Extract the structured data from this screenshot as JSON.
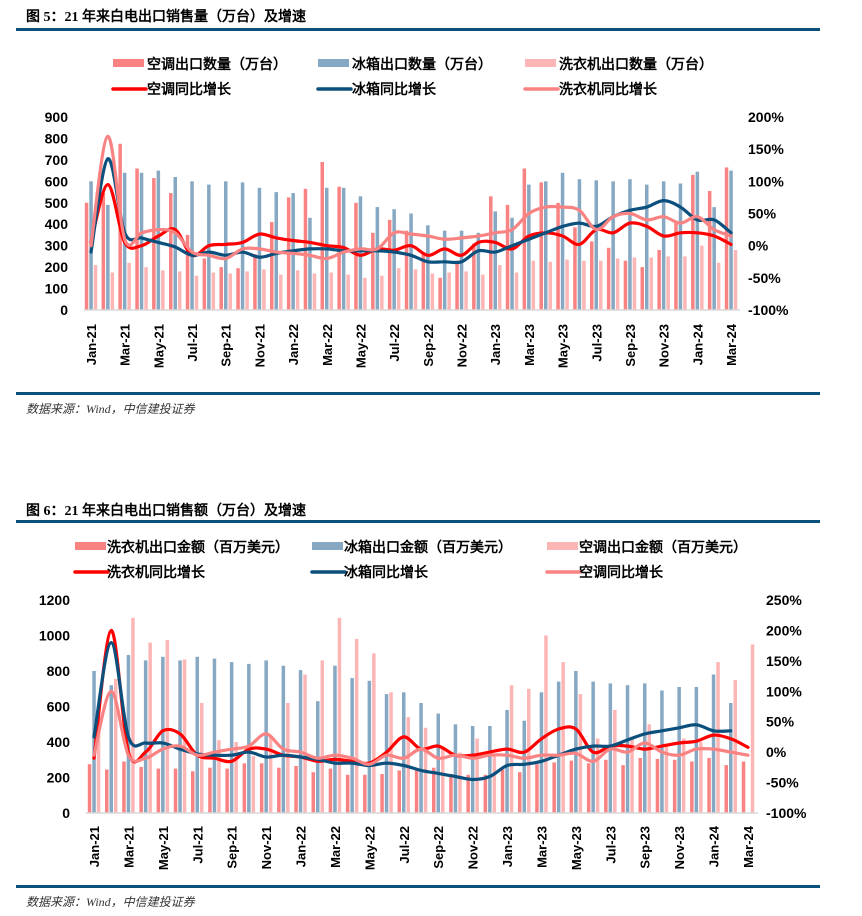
{
  "figures": [
    {
      "title": "图 5：21 年来白电出口销售量（万台）及增速",
      "source": "数据来源：Wind，中信建投证券"
    },
    {
      "title": "图 6：21 年来白电出口销售额（万台）及增速",
      "source": "数据来源：Wind，中信建投证券"
    }
  ],
  "colors": {
    "bar_red": "#f98282",
    "bar_blue": "#86a8c2",
    "bar_pink": "#fdb6b6",
    "line_red": "#ff0000",
    "line_navy": "#0b4f7c",
    "line_salmon": "#f98282",
    "rule": "#0b4f7c"
  },
  "chart_data": [
    {
      "type": "bar",
      "title": "图 5：21 年来白电出口销售量（万台）及增速",
      "xlabel": "",
      "ylabel": "",
      "ylim": [
        0,
        900
      ],
      "y2lim": [
        -1.0,
        2.0
      ],
      "yticks": [
        "0",
        "100",
        "200",
        "300",
        "400",
        "500",
        "600",
        "700",
        "800",
        "900"
      ],
      "y2ticks": [
        "-100%",
        "-50%",
        "0%",
        "50%",
        "100%",
        "150%",
        "200%"
      ],
      "xtick_labels": [
        "Jan-21",
        "Mar-21",
        "May-21",
        "Jul-21",
        "Sep-21",
        "Nov-21",
        "Jan-22",
        "Mar-22",
        "May-22",
        "Jul-22",
        "Sep-22",
        "Nov-22",
        "Jan-23",
        "Mar-23",
        "May-23",
        "Jul-23",
        "Sep-23",
        "Nov-23",
        "Jan-24",
        "Mar-24"
      ],
      "grid": false,
      "legend_position": "top",
      "categories": [
        "Jan-21",
        "Feb-21",
        "Mar-21",
        "Apr-21",
        "May-21",
        "Jun-21",
        "Jul-21",
        "Aug-21",
        "Sep-21",
        "Oct-21",
        "Nov-21",
        "Dec-21",
        "Jan-22",
        "Feb-22",
        "Mar-22",
        "Apr-22",
        "May-22",
        "Jun-22",
        "Jul-22",
        "Aug-22",
        "Sep-22",
        "Oct-22",
        "Nov-22",
        "Dec-22",
        "Jan-23",
        "Feb-23",
        "Mar-23",
        "Apr-23",
        "May-23",
        "Jun-23",
        "Jul-23",
        "Aug-23",
        "Sep-23",
        "Oct-23",
        "Nov-23",
        "Dec-23",
        "Jan-24",
        "Feb-24",
        "Mar-24"
      ],
      "legend": [
        {
          "label": "空调出口数量（万台）",
          "kind": "bar",
          "color": "#f98282"
        },
        {
          "label": "冰箱出口数量（万台）",
          "kind": "bar",
          "color": "#86a8c2"
        },
        {
          "label": "洗衣机出口数量（万台）",
          "kind": "bar",
          "color": "#fdb6b6"
        },
        {
          "label": "空调同比增长",
          "kind": "line",
          "color": "#ff0000"
        },
        {
          "label": "冰箱同比增长",
          "kind": "line",
          "color": "#0b4f7c"
        },
        {
          "label": "洗衣机同比增长",
          "kind": "line",
          "color": "#f98282"
        }
      ],
      "bar_series": [
        {
          "name": "空调出口数量（万台）",
          "axis": "left",
          "values": [
            500,
            545,
            775,
            660,
            615,
            545,
            350,
            240,
            200,
            195,
            260,
            410,
            525,
            565,
            690,
            575,
            500,
            360,
            420,
            370,
            270,
            150,
            230,
            310,
            530,
            490,
            660,
            595,
            500,
            385,
            320,
            290,
            230,
            200,
            280,
            405,
            630,
            555,
            665
          ]
        },
        {
          "name": "冰箱出口数量（万台）",
          "axis": "left",
          "values": [
            600,
            490,
            640,
            640,
            650,
            620,
            600,
            585,
            600,
            595,
            570,
            550,
            545,
            430,
            570,
            570,
            530,
            480,
            470,
            450,
            395,
            370,
            370,
            360,
            460,
            430,
            585,
            600,
            640,
            610,
            605,
            600,
            610,
            585,
            600,
            590,
            645,
            480,
            650
          ]
        },
        {
          "name": "洗衣机出口数量（万台）",
          "axis": "left",
          "values": [
            210,
            175,
            220,
            200,
            185,
            180,
            160,
            175,
            170,
            180,
            190,
            165,
            185,
            170,
            175,
            165,
            150,
            160,
            195,
            190,
            170,
            175,
            180,
            165,
            210,
            175,
            230,
            225,
            235,
            230,
            230,
            240,
            245,
            245,
            250,
            250,
            300,
            220,
            280
          ]
        }
      ],
      "line_series": [
        {
          "name": "空调同比增长",
          "axis": "right",
          "values": [
            0.05,
            0.95,
            0.05,
            0.0,
            0.15,
            0.25,
            -0.15,
            0.0,
            0.02,
            0.05,
            0.18,
            0.12,
            0.08,
            0.05,
            0.0,
            -0.03,
            -0.15,
            -0.05,
            -0.07,
            0.0,
            -0.15,
            -0.05,
            -0.15,
            0.05,
            0.05,
            -0.05,
            0.15,
            0.2,
            0.15,
            0.02,
            0.25,
            0.2,
            0.35,
            0.3,
            0.15,
            0.2,
            0.2,
            0.15,
            0.02
          ]
        },
        {
          "name": "冰箱同比增长",
          "axis": "right",
          "values": [
            -0.1,
            1.35,
            0.2,
            0.12,
            0.05,
            -0.02,
            -0.15,
            -0.1,
            -0.15,
            -0.1,
            -0.18,
            -0.12,
            -0.08,
            -0.05,
            -0.05,
            -0.08,
            -0.08,
            -0.08,
            -0.1,
            -0.15,
            -0.25,
            -0.25,
            -0.25,
            -0.08,
            -0.1,
            0.0,
            0.1,
            0.2,
            0.3,
            0.35,
            0.3,
            0.45,
            0.55,
            0.6,
            0.7,
            0.6,
            0.4,
            0.4,
            0.2
          ]
        },
        {
          "name": "洗衣机同比增长",
          "axis": "right",
          "values": [
            0.0,
            1.7,
            0.1,
            0.2,
            0.25,
            0.2,
            -0.1,
            -0.15,
            -0.2,
            -0.05,
            -0.05,
            -0.1,
            -0.12,
            -0.15,
            -0.2,
            -0.1,
            -0.05,
            -0.05,
            0.2,
            0.18,
            0.15,
            0.1,
            0.12,
            0.15,
            0.2,
            0.25,
            0.5,
            0.6,
            0.6,
            0.55,
            0.25,
            0.45,
            0.5,
            0.4,
            0.45,
            0.35,
            0.45,
            0.25,
            0.15
          ]
        }
      ]
    },
    {
      "type": "bar",
      "title": "图 6：21 年来白电出口销售额（万台）及增速",
      "xlabel": "",
      "ylabel": "",
      "ylim": [
        0,
        1200
      ],
      "y2lim": [
        -1.0,
        2.5
      ],
      "yticks": [
        "0",
        "200",
        "400",
        "600",
        "800",
        "1000",
        "1200"
      ],
      "y2ticks": [
        "-100%",
        "-50%",
        "0%",
        "50%",
        "100%",
        "150%",
        "200%",
        "250%"
      ],
      "xtick_labels": [
        "Jan-21",
        "Mar-21",
        "May-21",
        "Jul-21",
        "Sep-21",
        "Nov-21",
        "Jan-22",
        "Mar-22",
        "May-22",
        "Jul-22",
        "Sep-22",
        "Nov-22",
        "Jan-23",
        "Mar-23",
        "May-23",
        "Jul-23",
        "Sep-23",
        "Nov-23",
        "Jan-24",
        "Mar-24"
      ],
      "grid": false,
      "legend_position": "top",
      "categories": [
        "Jan-21",
        "Feb-21",
        "Mar-21",
        "Apr-21",
        "May-21",
        "Jun-21",
        "Jul-21",
        "Aug-21",
        "Sep-21",
        "Oct-21",
        "Nov-21",
        "Dec-21",
        "Jan-22",
        "Feb-22",
        "Mar-22",
        "Apr-22",
        "May-22",
        "Jun-22",
        "Jul-22",
        "Aug-22",
        "Sep-22",
        "Oct-22",
        "Nov-22",
        "Dec-22",
        "Jan-23",
        "Feb-23",
        "Mar-23",
        "Apr-23",
        "May-23",
        "Jun-23",
        "Jul-23",
        "Aug-23",
        "Sep-23",
        "Oct-23",
        "Nov-23",
        "Dec-23",
        "Jan-24",
        "Feb-24",
        "Mar-24"
      ],
      "legend": [
        {
          "label": "洗衣机出口金额（百万美元）",
          "kind": "bar",
          "color": "#f98282"
        },
        {
          "label": "冰箱出口金额（百万美元）",
          "kind": "bar",
          "color": "#86a8c2"
        },
        {
          "label": "空调出口金额（百万美元）",
          "kind": "bar",
          "color": "#fdb6b6"
        },
        {
          "label": "洗衣机同比增长",
          "kind": "line",
          "color": "#ff0000"
        },
        {
          "label": "冰箱同比增长",
          "kind": "line",
          "color": "#0b4f7c"
        },
        {
          "label": "空调同比增长",
          "kind": "line",
          "color": "#f98282"
        }
      ],
      "bar_series": [
        {
          "name": "洗衣机出口金额（百万美元）",
          "axis": "left",
          "values": [
            275,
            245,
            290,
            260,
            250,
            250,
            235,
            255,
            250,
            280,
            280,
            255,
            265,
            230,
            250,
            215,
            215,
            220,
            240,
            245,
            255,
            220,
            215,
            215,
            245,
            230,
            275,
            285,
            295,
            280,
            300,
            270,
            310,
            305,
            300,
            290,
            310,
            270,
            290
          ]
        },
        {
          "name": "冰箱出口金额（百万美元）",
          "axis": "left",
          "values": [
            800,
            720,
            890,
            860,
            880,
            860,
            880,
            870,
            850,
            840,
            860,
            830,
            805,
            630,
            830,
            760,
            745,
            670,
            680,
            620,
            560,
            500,
            490,
            490,
            580,
            520,
            680,
            740,
            800,
            740,
            730,
            720,
            730,
            690,
            710,
            710,
            780,
            620,
            0
          ]
        },
        {
          "name": "空调出口金额（百万美元）",
          "axis": "left",
          "values": [
            550,
            755,
            1100,
            960,
            975,
            865,
            620,
            410,
            400,
            320,
            430,
            620,
            780,
            860,
            1100,
            980,
            900,
            680,
            540,
            480,
            360,
            340,
            420,
            320,
            720,
            700,
            1000,
            850,
            670,
            420,
            580,
            430,
            500,
            380,
            420,
            400,
            850,
            750,
            950
          ]
        }
      ],
      "line_series": [
        {
          "name": "洗衣机同比增长",
          "axis": "right",
          "values": [
            -0.1,
            2.0,
            0.0,
            0.0,
            0.35,
            0.3,
            -0.05,
            -0.1,
            -0.15,
            0.05,
            0.05,
            -0.05,
            -0.08,
            -0.15,
            -0.12,
            -0.15,
            -0.18,
            0.0,
            0.25,
            0.05,
            0.1,
            -0.05,
            -0.05,
            0.0,
            0.05,
            0.0,
            0.22,
            0.38,
            0.38,
            0.0,
            0.1,
            0.1,
            0.05,
            0.1,
            0.15,
            0.18,
            0.28,
            0.22,
            0.08
          ]
        },
        {
          "name": "冰箱同比增长",
          "axis": "right",
          "values": [
            0.25,
            1.8,
            0.25,
            0.15,
            0.15,
            0.05,
            -0.03,
            -0.05,
            -0.05,
            0.0,
            -0.08,
            -0.05,
            -0.08,
            -0.12,
            -0.18,
            -0.18,
            -0.22,
            -0.18,
            -0.22,
            -0.3,
            -0.35,
            -0.4,
            -0.45,
            -0.4,
            -0.22,
            -0.2,
            -0.15,
            -0.05,
            0.05,
            0.1,
            0.1,
            0.2,
            0.3,
            0.35,
            0.4,
            0.45,
            0.35,
            0.35,
            null
          ]
        },
        {
          "name": "空调同比增长",
          "axis": "right",
          "values": [
            -0.05,
            1.0,
            -0.05,
            -0.1,
            0.05,
            0.1,
            -0.05,
            0.0,
            0.05,
            0.1,
            0.3,
            0.05,
            0.0,
            -0.1,
            -0.05,
            -0.1,
            -0.2,
            -0.05,
            -0.1,
            0.05,
            -0.1,
            -0.05,
            -0.1,
            -0.05,
            -0.05,
            -0.1,
            -0.05,
            -0.05,
            -0.02,
            -0.15,
            0.05,
            0.0,
            0.15,
            0.0,
            -0.05,
            0.05,
            0.05,
            0.0,
            -0.05
          ]
        }
      ]
    }
  ]
}
